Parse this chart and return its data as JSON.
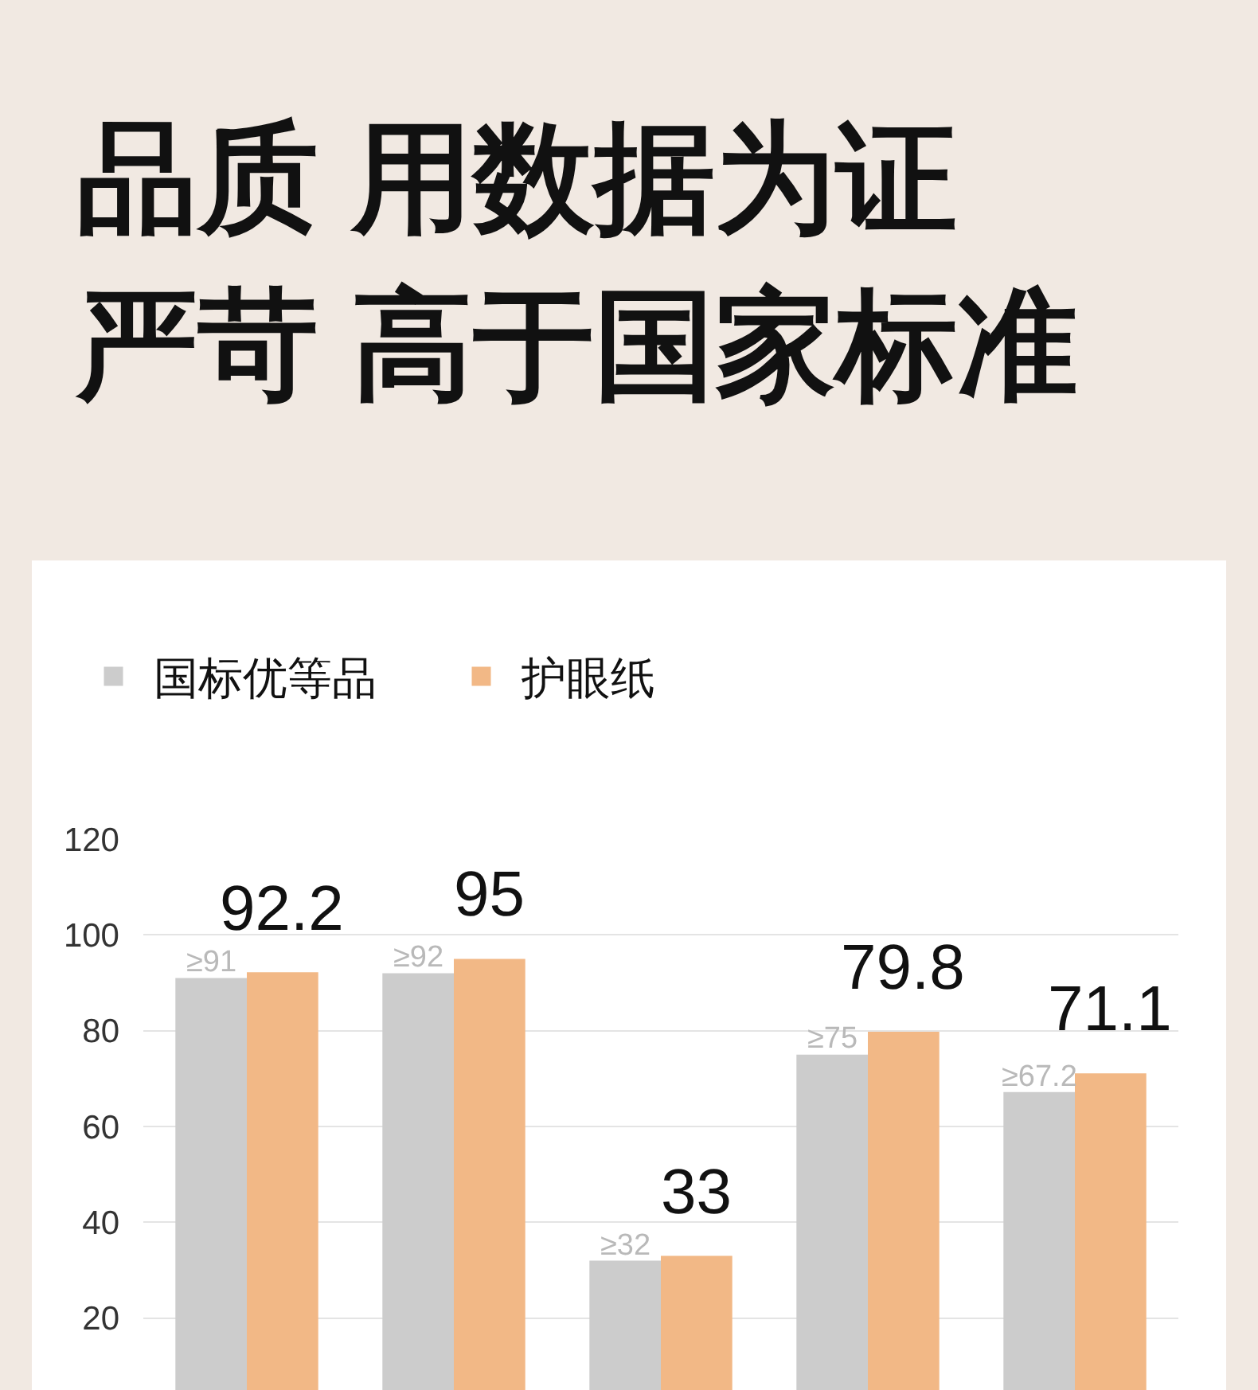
{
  "chart_data": {
    "type": "bar",
    "title": "品质 用数据为证",
    "subtitle": "严苛 高于国家标准",
    "categories": [
      null,
      null,
      null,
      null,
      null
    ],
    "series": [
      {
        "name": "国标优等品",
        "color": "#cccccc",
        "values": [
          91,
          92,
          32,
          75,
          67.2
        ],
        "value_labels": [
          "≥91",
          "≥92",
          "≥32",
          "≥75",
          "≥67.2"
        ]
      },
      {
        "name": "护眼纸",
        "color": "#f2b886",
        "values": [
          92.2,
          95,
          33,
          79.8,
          71.1
        ],
        "value_labels": [
          "92.2",
          "95",
          "33",
          "79.8",
          "71.1"
        ]
      }
    ],
    "ylim": [
      5,
      120
    ],
    "yticks": [
      20,
      40,
      60,
      80,
      100,
      120
    ],
    "grid": "y",
    "legend": "top left",
    "tick_labels": "y"
  }
}
